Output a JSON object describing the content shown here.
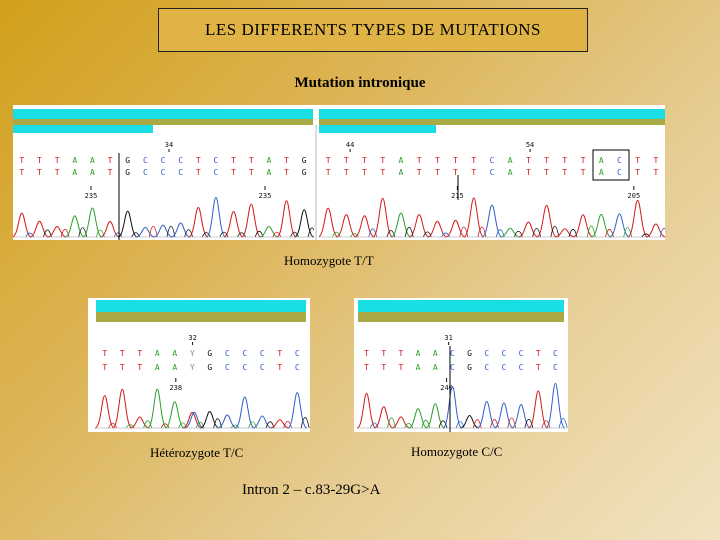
{
  "title": "LES DIFFERENTS TYPES DE MUTATIONS",
  "subtitle": "Mutation intronique",
  "colors": {
    "cyan": "#19dfe4",
    "olive": "#a9aa45",
    "base_T": "#d11a1a",
    "base_A": "#2aa12a",
    "base_G": "#111111",
    "base_C": "#2f60c8"
  },
  "top_panel": {
    "caption": "Homozygote T/T",
    "left": {
      "bases": [
        "T",
        "T",
        "T",
        "A",
        "A",
        "T",
        "G",
        "C",
        "C",
        "C",
        "T",
        "C",
        "T",
        "T",
        "A",
        "T",
        "G"
      ],
      "ticks": [
        "34"
      ],
      "positions": [
        "235",
        "235"
      ]
    },
    "right": {
      "bases": [
        "T",
        "T",
        "T",
        "T",
        "A",
        "T",
        "T",
        "T",
        "T",
        "C",
        "A",
        "T",
        "T",
        "T",
        "T",
        "A",
        "C",
        "T",
        "T"
      ],
      "ticks": [
        "44",
        "54"
      ],
      "positions": [
        "215",
        "205"
      ]
    }
  },
  "bottom_left": {
    "caption": "Hétérozygote T/C",
    "bases": [
      "T",
      "T",
      "T",
      "A",
      "A",
      "Y",
      "G",
      "C",
      "C",
      "C",
      "T",
      "C"
    ],
    "ticks": [
      "32"
    ],
    "positions": [
      "238"
    ]
  },
  "bottom_right": {
    "caption": "Homozygote C/C",
    "bases": [
      "T",
      "T",
      "T",
      "A",
      "A",
      "C",
      "G",
      "C",
      "C",
      "C",
      "T",
      "C"
    ],
    "ticks": [
      "31"
    ],
    "positions": [
      "240"
    ]
  },
  "footer": "Intron 2 – c.83-29G>A"
}
